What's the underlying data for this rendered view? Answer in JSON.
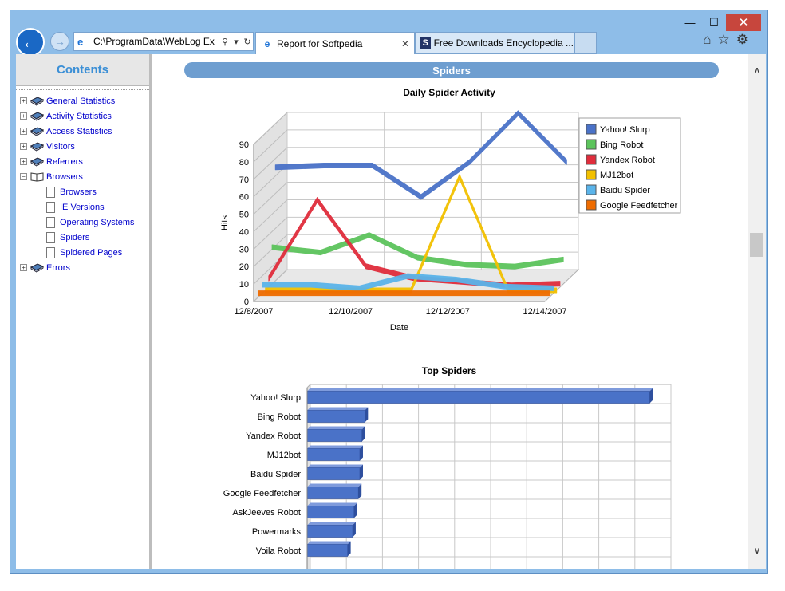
{
  "window": {
    "minimize": "—",
    "maximize": "☐",
    "close": "✕"
  },
  "nav": {
    "address": "C:\\ProgramData\\WebLog Ex",
    "search_icon": "search-icon",
    "dropdown": "▾",
    "refresh": "↻"
  },
  "tabs": [
    {
      "label": "Report for Softpedia",
      "active": true
    },
    {
      "label": "Free Downloads Encyclopedia ...",
      "active": false
    }
  ],
  "sidebar": {
    "title": "Contents",
    "items": [
      {
        "label": "General Statistics",
        "expander": "+",
        "icon": "book-icon",
        "indent": 0
      },
      {
        "label": "Activity Statistics",
        "expander": "+",
        "icon": "book-icon",
        "indent": 0
      },
      {
        "label": "Access Statistics",
        "expander": "+",
        "icon": "book-icon",
        "indent": 0
      },
      {
        "label": "Visitors",
        "expander": "+",
        "icon": "book-icon",
        "indent": 0
      },
      {
        "label": "Referrers",
        "expander": "+",
        "icon": "book-icon",
        "indent": 0
      },
      {
        "label": "Browsers",
        "expander": "−",
        "icon": "open-book-icon",
        "indent": 0
      },
      {
        "label": "Browsers",
        "expander": "",
        "icon": "page-icon",
        "indent": 1
      },
      {
        "label": "IE Versions",
        "expander": "",
        "icon": "page-icon",
        "indent": 1
      },
      {
        "label": "Operating Systems",
        "expander": "",
        "icon": "page-icon",
        "indent": 1
      },
      {
        "label": "Spiders",
        "expander": "",
        "icon": "page-icon",
        "indent": 1
      },
      {
        "label": "Spidered Pages",
        "expander": "",
        "icon": "page-icon",
        "indent": 1
      },
      {
        "label": "Errors",
        "expander": "+",
        "icon": "book-icon",
        "indent": 0
      }
    ]
  },
  "main": {
    "banner": "Spiders"
  },
  "chart_data": [
    {
      "type": "line",
      "title": "Daily Spider Activity",
      "xlabel": "Date",
      "ylabel": "Hits",
      "ylim": [
        0,
        90
      ],
      "yticks": [
        0,
        10,
        20,
        30,
        40,
        50,
        60,
        70,
        80,
        90
      ],
      "x": [
        "12/8/2007",
        "12/9/2007",
        "12/10/2007",
        "12/11/2007",
        "12/12/2007",
        "12/13/2007",
        "12/14/2007"
      ],
      "xtick_labels": [
        "12/8/2007",
        "12/10/2007",
        "12/12/2007",
        "12/14/2007"
      ],
      "legend": "right",
      "grid": true,
      "series": [
        {
          "name": "Yahoo! Slurp",
          "color": "#4a72c8",
          "values": [
            65,
            66,
            66,
            48,
            68,
            96,
            68
          ]
        },
        {
          "name": "Bing Robot",
          "color": "#5cc45c",
          "values": [
            21,
            18,
            28,
            15,
            11,
            10,
            14
          ]
        },
        {
          "name": "Yandex Robot",
          "color": "#e02d3c",
          "values": [
            5,
            50,
            12,
            5,
            3,
            1,
            2
          ]
        },
        {
          "name": "MJ12bot",
          "color": "#f2c000",
          "values": [
            0,
            0,
            0,
            0,
            65,
            0,
            0
          ]
        },
        {
          "name": "Baidu Spider",
          "color": "#5ab4ea",
          "values": [
            5,
            5,
            3,
            10,
            8,
            4,
            3
          ]
        },
        {
          "name": "Google Feedfetcher",
          "color": "#ef6c00",
          "values": [
            2,
            2,
            2,
            2,
            2,
            2,
            2
          ]
        }
      ]
    },
    {
      "type": "bar",
      "title": "Top Spiders",
      "orientation": "horizontal",
      "grid": true,
      "categories": [
        "Yahoo! Slurp",
        "Bing Robot",
        "Yandex Robot",
        "MJ12bot",
        "Baidu Spider",
        "Google Feedfetcher",
        "AskJeeves Robot",
        "Powermarks",
        "Voila Robot"
      ],
      "values": [
        475,
        80,
        76,
        73,
        73,
        71,
        65,
        63,
        56
      ],
      "xlim": [
        0,
        500
      ],
      "color": "#4a72c8"
    }
  ]
}
